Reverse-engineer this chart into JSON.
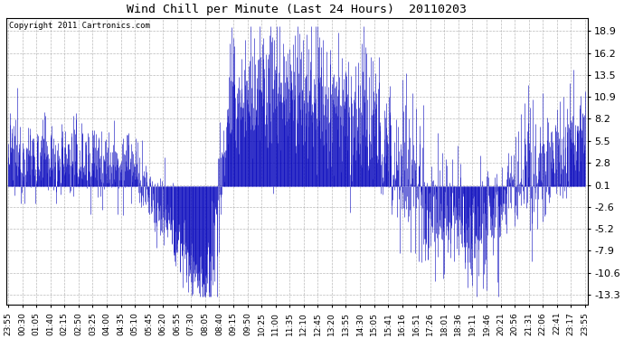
{
  "title": "Wind Chill per Minute (Last 24 Hours)  20110203",
  "copyright": "Copyright 2011 Cartronics.com",
  "line_color": "#0000BB",
  "bg_color": "#FFFFFF",
  "plot_bg_color": "#FFFFFF",
  "grid_color": "#AAAAAA",
  "yticks": [
    18.9,
    16.2,
    13.5,
    10.9,
    8.2,
    5.5,
    2.8,
    0.1,
    -2.6,
    -5.2,
    -7.9,
    -10.6,
    -13.3
  ],
  "ylim": [
    -14.5,
    20.5
  ],
  "x_tick_labels": [
    "23:55",
    "00:30",
    "01:05",
    "01:40",
    "02:15",
    "02:50",
    "03:25",
    "04:00",
    "04:35",
    "05:10",
    "05:45",
    "06:20",
    "06:55",
    "07:30",
    "08:05",
    "08:40",
    "09:15",
    "09:50",
    "10:25",
    "11:00",
    "11:35",
    "12:10",
    "12:45",
    "13:20",
    "13:55",
    "14:30",
    "15:05",
    "15:41",
    "16:16",
    "16:51",
    "17:26",
    "18:01",
    "18:36",
    "19:11",
    "19:46",
    "20:21",
    "20:56",
    "21:31",
    "22:06",
    "22:41",
    "23:17",
    "23:55"
  ]
}
